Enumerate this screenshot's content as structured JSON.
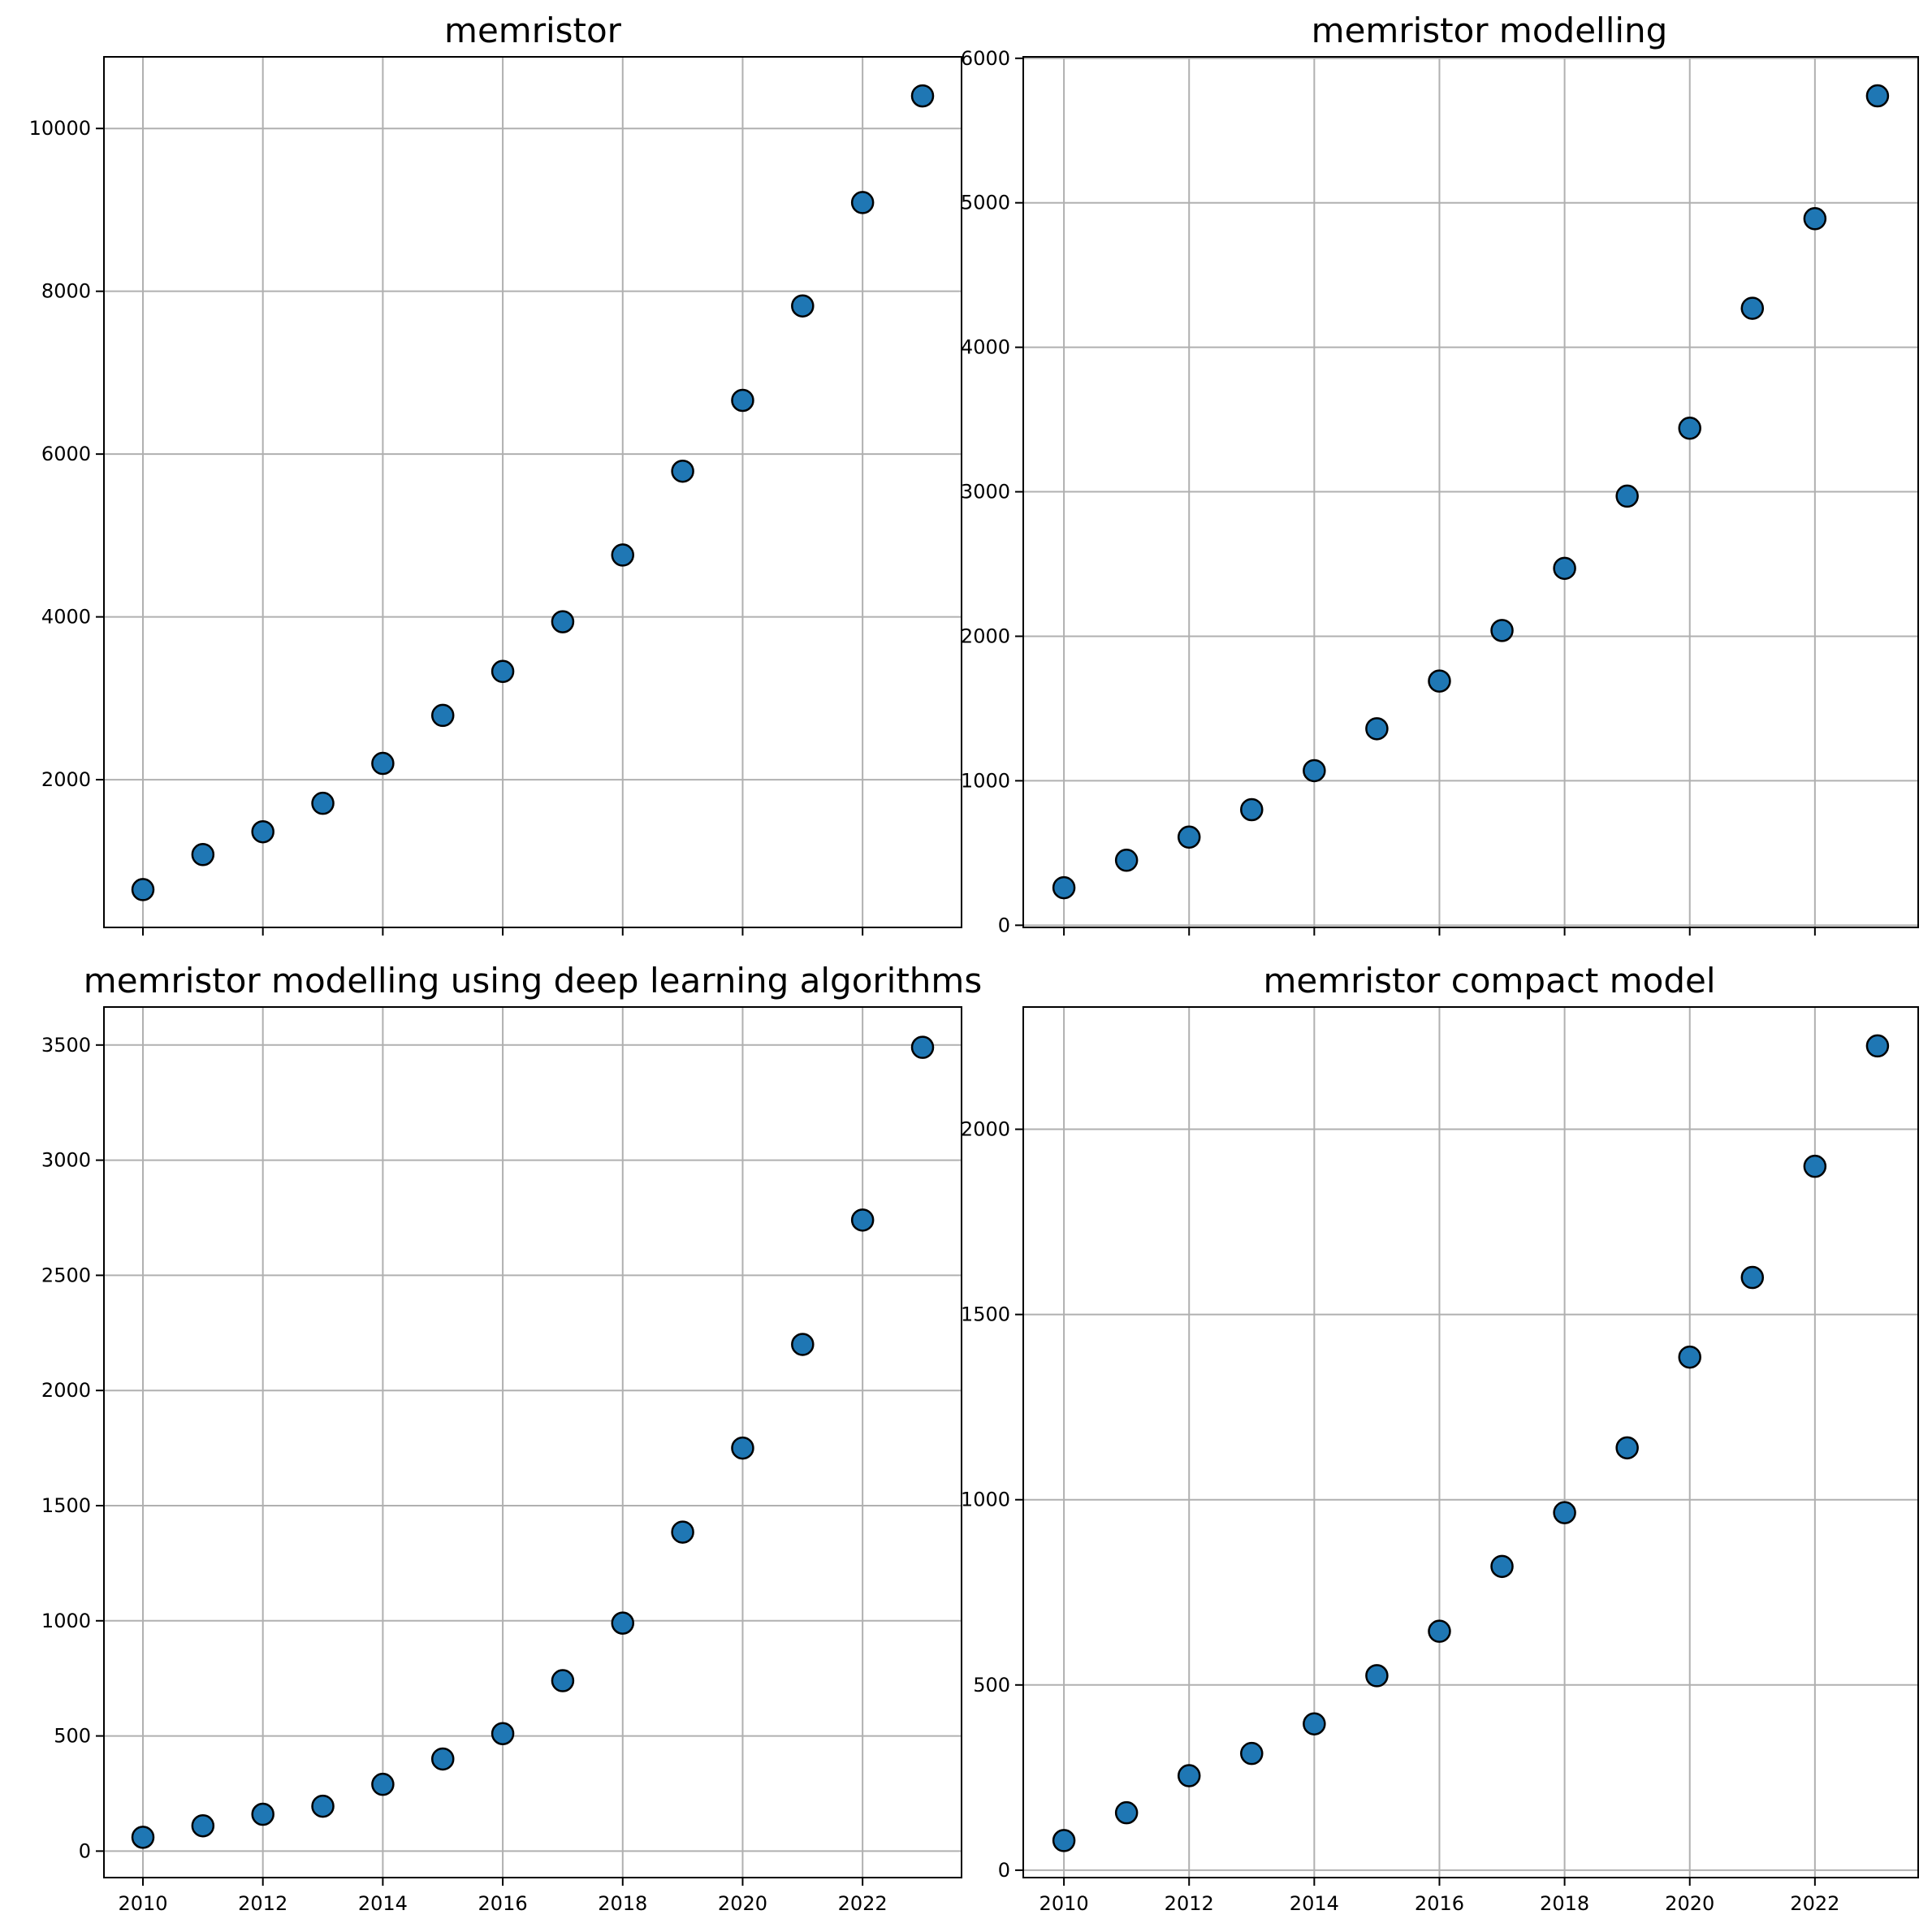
{
  "chart_data": [
    {
      "type": "scatter",
      "title": "memristor",
      "xlabel": "",
      "ylabel": "",
      "x": [
        2010,
        2011,
        2012,
        2013,
        2014,
        2015,
        2016,
        2017,
        2018,
        2019,
        2020,
        2021,
        2022,
        2023
      ],
      "y": [
        650,
        1080,
        1360,
        1710,
        2200,
        2790,
        3330,
        3940,
        4760,
        5790,
        6660,
        7820,
        9090,
        10400
      ],
      "xlim": [
        2009.35,
        2023.65
      ],
      "ylim": [
        185,
        10880
      ],
      "xticks": [
        2010,
        2012,
        2014,
        2016,
        2018,
        2020,
        2022
      ],
      "yticks": [
        2000,
        4000,
        6000,
        8000,
        10000
      ],
      "show_x_tick_labels": false,
      "grid": true,
      "marker_color": "#1f77b4",
      "edge_color": "#000000"
    },
    {
      "type": "scatter",
      "title": "memristor modelling",
      "xlabel": "",
      "ylabel": "",
      "x": [
        2010,
        2011,
        2012,
        2013,
        2014,
        2015,
        2016,
        2017,
        2018,
        2019,
        2020,
        2021,
        2022,
        2023
      ],
      "y": [
        260,
        450,
        610,
        800,
        1070,
        1360,
        1690,
        2040,
        2470,
        2970,
        3440,
        4270,
        4890,
        5740
      ],
      "xlim": [
        2009.35,
        2023.65
      ],
      "ylim": [
        -15,
        6010
      ],
      "xticks": [
        2010,
        2012,
        2014,
        2016,
        2018,
        2020,
        2022
      ],
      "yticks": [
        0,
        1000,
        2000,
        3000,
        4000,
        5000,
        6000
      ],
      "show_x_tick_labels": false,
      "grid": true,
      "marker_color": "#1f77b4",
      "edge_color": "#000000"
    },
    {
      "type": "scatter",
      "title": "memristor modelling using deep learning algorithms",
      "xlabel": "",
      "ylabel": "",
      "x": [
        2010,
        2011,
        2012,
        2013,
        2014,
        2015,
        2016,
        2017,
        2018,
        2019,
        2020,
        2021,
        2022,
        2023
      ],
      "y": [
        60,
        110,
        160,
        195,
        290,
        400,
        510,
        740,
        990,
        1385,
        1750,
        2200,
        2740,
        3490
      ],
      "xlim": [
        2009.35,
        2023.65
      ],
      "ylim": [
        -115,
        3665
      ],
      "xticks": [
        2010,
        2012,
        2014,
        2016,
        2018,
        2020,
        2022
      ],
      "yticks": [
        0,
        500,
        1000,
        1500,
        2000,
        2500,
        3000,
        3500
      ],
      "show_x_tick_labels": true,
      "grid": true,
      "marker_color": "#1f77b4",
      "edge_color": "#000000"
    },
    {
      "type": "scatter",
      "title": "memristor compact model",
      "xlabel": "",
      "ylabel": "",
      "x": [
        2010,
        2011,
        2012,
        2013,
        2014,
        2015,
        2016,
        2017,
        2018,
        2019,
        2020,
        2021,
        2022,
        2023
      ],
      "y": [
        80,
        155,
        255,
        315,
        395,
        525,
        645,
        820,
        965,
        1140,
        1385,
        1600,
        1900,
        2225
      ],
      "xlim": [
        2009.35,
        2023.65
      ],
      "ylim": [
        -20,
        2330
      ],
      "xticks": [
        2010,
        2012,
        2014,
        2016,
        2018,
        2020,
        2022
      ],
      "yticks": [
        0,
        500,
        1000,
        1500,
        2000
      ],
      "show_x_tick_labels": true,
      "grid": true,
      "marker_color": "#1f77b4",
      "edge_color": "#000000"
    }
  ]
}
